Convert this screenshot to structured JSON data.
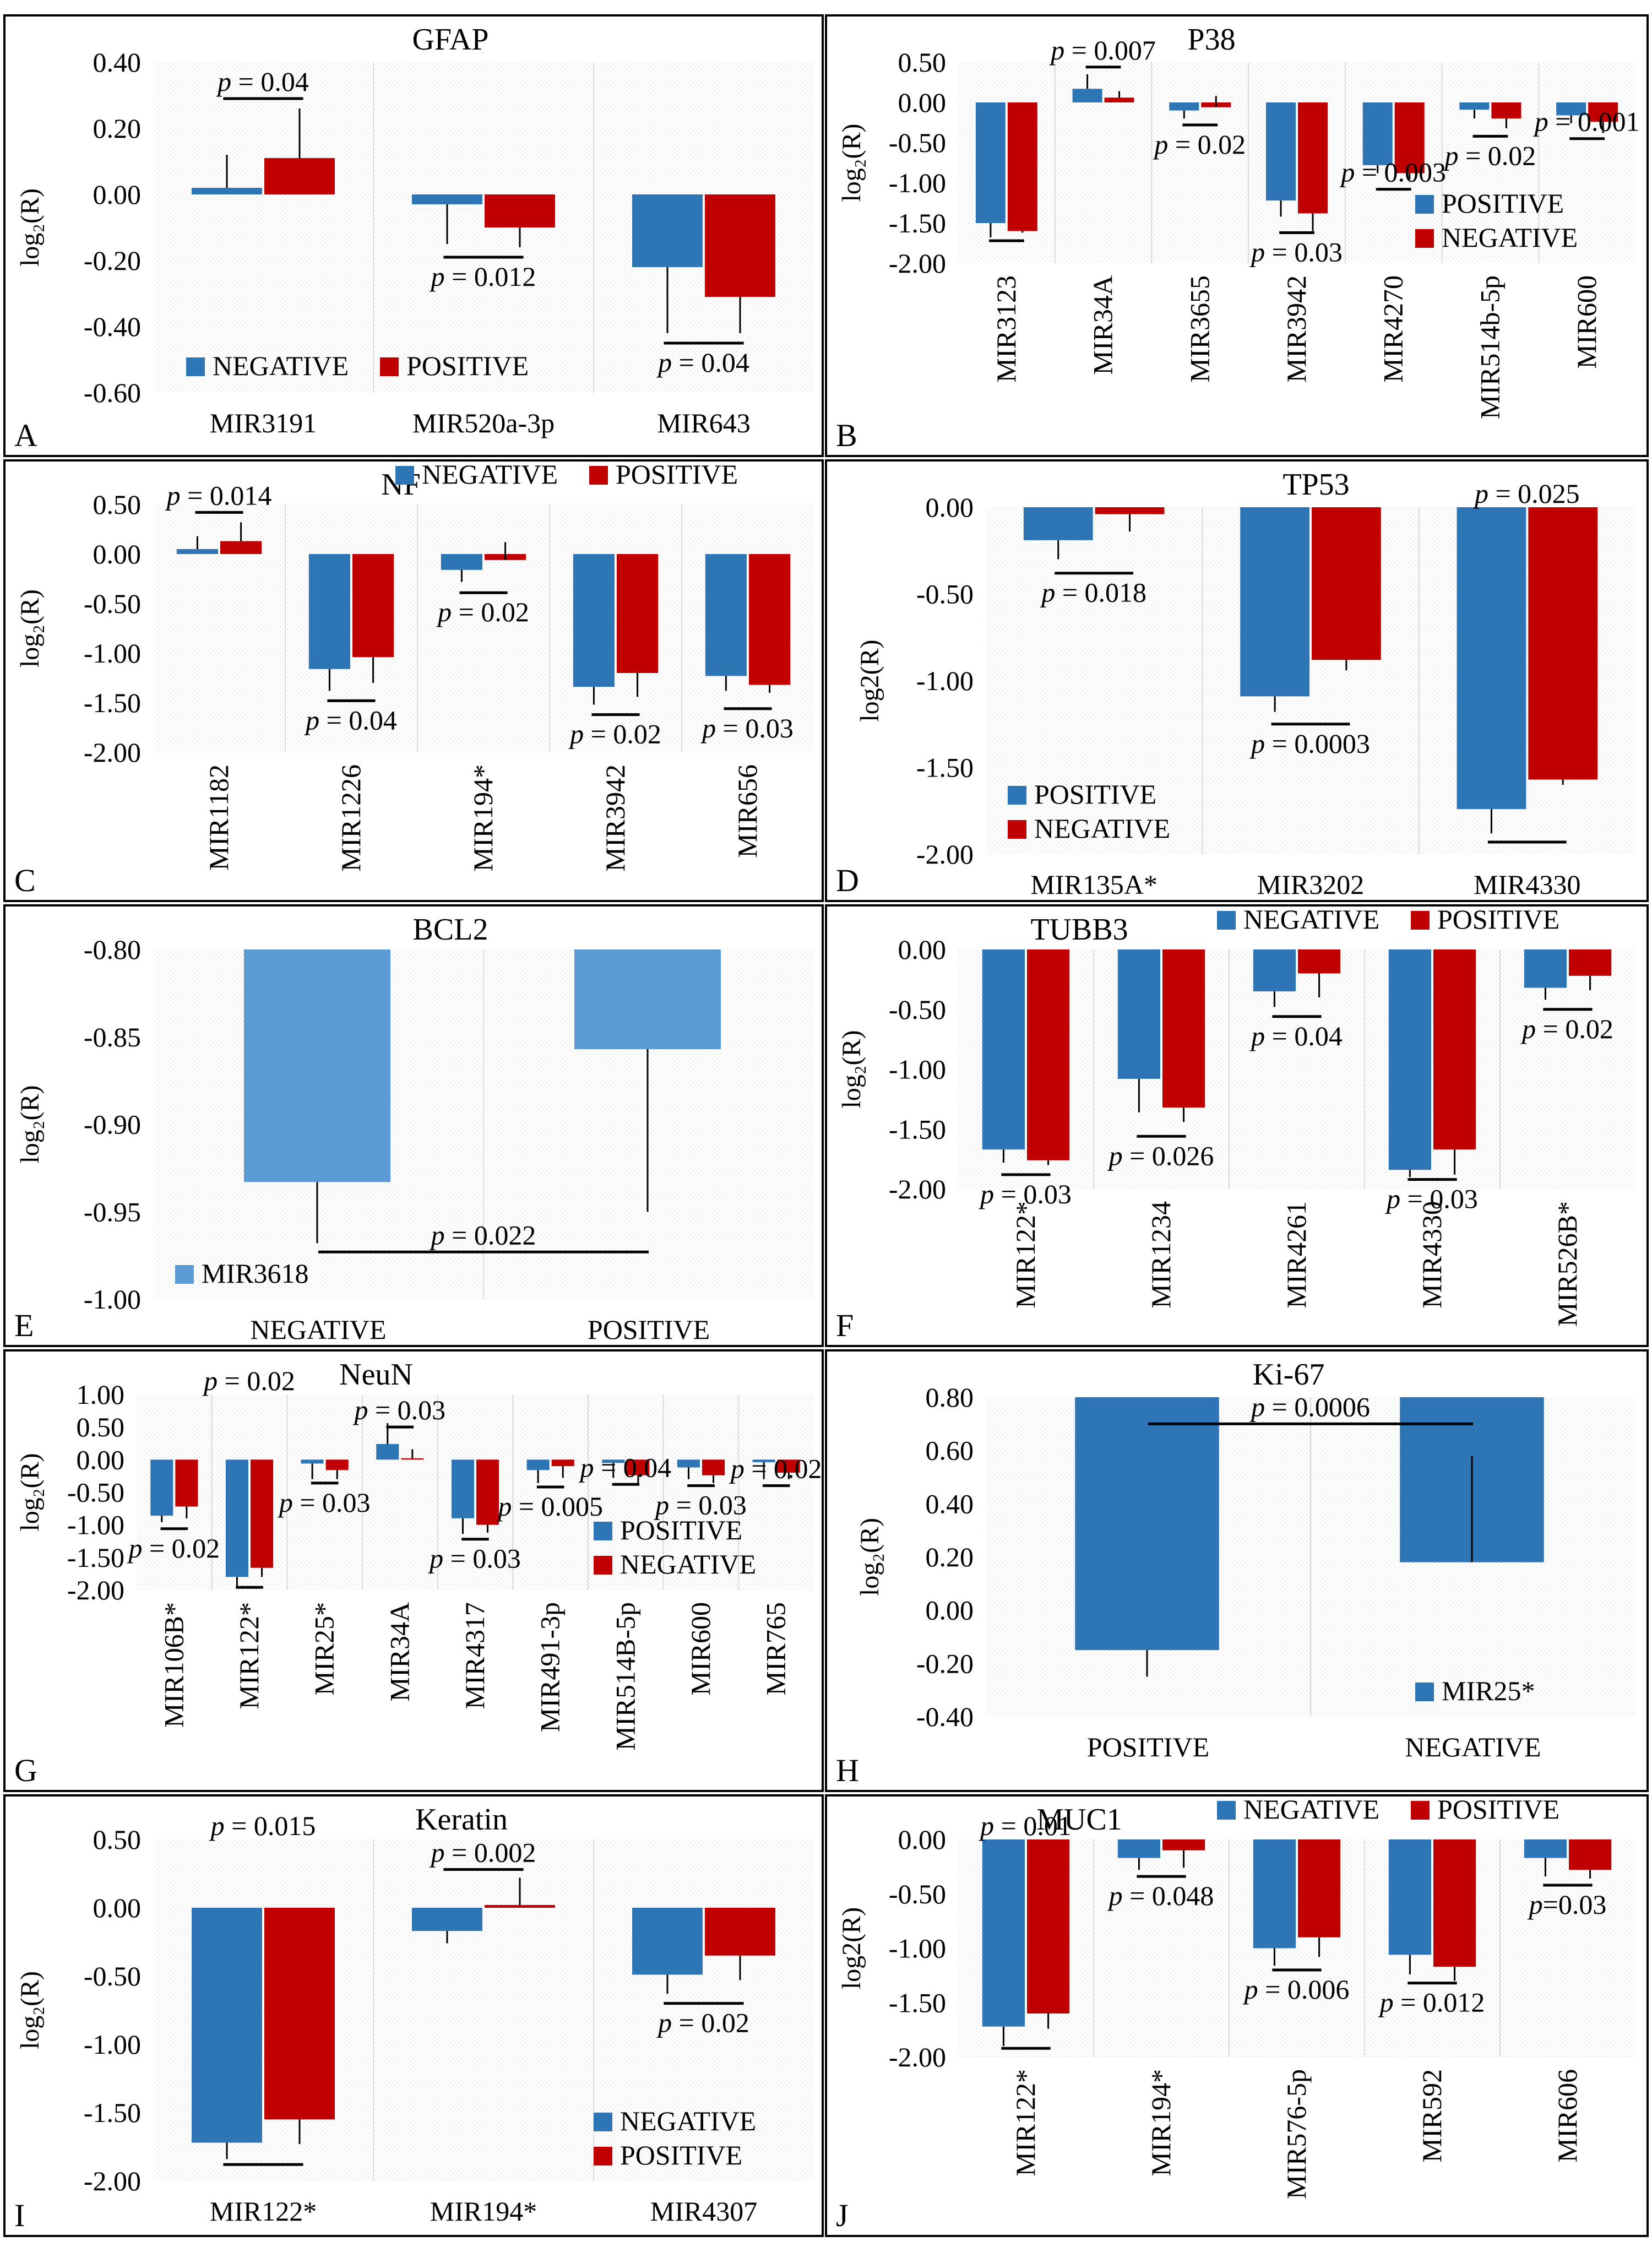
{
  "colors": {
    "blue": "#2E75B6",
    "red": "#C00000",
    "lightblue": "#5B9BD5",
    "grid": "#E7E6E6",
    "frame": "#000000"
  },
  "chart_data": [
    {
      "panel": "A",
      "type": "bar",
      "title": "GFAP",
      "ylabel": "log₂(R)",
      "ylim": [
        -0.6,
        0.4
      ],
      "yticks": [
        0.4,
        0.2,
        0,
        -0.2,
        -0.4,
        -0.6
      ],
      "tick_decimals": 2,
      "rotated": false,
      "categories": [
        "MIR3191",
        "MIR520a-3p",
        "MIR643"
      ],
      "series": [
        {
          "name": "NEGATIVE",
          "color": "blue",
          "values": [
            0.02,
            -0.03,
            -0.22
          ]
        },
        {
          "name": "POSITIVE",
          "color": "red",
          "values": [
            0.11,
            -0.1,
            -0.31
          ]
        }
      ],
      "errors": [
        [
          0.12,
          -0.15,
          -0.42
        ],
        [
          0.26,
          -0.16,
          -0.42
        ]
      ],
      "pvalues": [
        {
          "text": "p = 0.04",
          "cat": 0,
          "y": 0.29,
          "above": true
        },
        {
          "text": "p = 0.012",
          "cat": 1,
          "y": -0.19,
          "above": false
        },
        {
          "text": "p = 0.04",
          "cat": 2,
          "y": -0.45,
          "above": false
        }
      ],
      "legend": {
        "pos": "bottom-left",
        "layout": "row",
        "order": [
          "NEGATIVE",
          "POSITIVE"
        ]
      }
    },
    {
      "panel": "B",
      "type": "bar",
      "title": "P38",
      "ylabel": "log₂(R)",
      "ylim": [
        -2,
        0.5
      ],
      "yticks": [
        0.5,
        0,
        -0.5,
        -1,
        -1.5,
        -2
      ],
      "tick_decimals": 2,
      "rotated": true,
      "categories": [
        "MIR3123",
        "MIR34A",
        "MIR3655",
        "MIR3942",
        "MIR4270",
        "MIR514b-5p",
        "MIR600"
      ],
      "series": [
        {
          "name": "POSITIVE",
          "color": "blue",
          "values": [
            -1.5,
            0.17,
            -0.1,
            -1.22,
            -0.78,
            -0.09,
            -0.16
          ]
        },
        {
          "name": "NEGATIVE",
          "color": "red",
          "values": [
            -1.6,
            0.06,
            -0.06,
            -1.38,
            -0.88,
            -0.2,
            -0.24
          ]
        }
      ],
      "errors": [
        [
          -1.68,
          0.35,
          -0.2,
          -1.42,
          -0.88,
          -0.2,
          -0.26
        ],
        [
          -1.62,
          0.14,
          0.08,
          -1.6,
          -0.96,
          -0.32,
          -0.38
        ]
      ],
      "pvalues": [
        {
          "text": "",
          "cat": 0,
          "y": -1.72,
          "above": false
        },
        {
          "text": "p = 0.007",
          "cat": 1,
          "y": 0.44,
          "above": true
        },
        {
          "text": "p = 0.02",
          "cat": 2,
          "y": -0.28,
          "above": false
        },
        {
          "text": "p = 0.03",
          "cat": 3,
          "y": -1.62,
          "above": false
        },
        {
          "text": "p = 0.003",
          "cat": 4,
          "y": -1.08,
          "above": false,
          "labelAbove": true
        },
        {
          "text": "p = 0.02",
          "cat": 5,
          "y": -0.42,
          "above": false
        },
        {
          "text": "p = 0.001",
          "cat": 6,
          "y": -0.45,
          "above": false,
          "labelAbove": true
        }
      ],
      "legend": {
        "pos": "bottom-right",
        "layout": "column",
        "order": [
          "POSITIVE",
          "NEGATIVE"
        ]
      }
    },
    {
      "panel": "C",
      "type": "bar",
      "title": "NF",
      "ylabel": "log₂(R)",
      "ylim": [
        -2,
        0.5
      ],
      "yticks": [
        0.5,
        0,
        -0.5,
        -1,
        -1.5,
        -2
      ],
      "tick_decimals": 2,
      "rotated": true,
      "categories": [
        "MIR1182",
        "MIR1226",
        "MIR194*",
        "MIR3942",
        "MIR656"
      ],
      "series": [
        {
          "name": "NEGATIVE",
          "color": "blue",
          "values": [
            0.05,
            -1.16,
            -0.16,
            -1.34,
            -1.23
          ]
        },
        {
          "name": "POSITIVE",
          "color": "red",
          "values": [
            0.13,
            -1.04,
            -0.06,
            -1.2,
            -1.32
          ]
        }
      ],
      "errors": [
        [
          0.18,
          -1.38,
          -0.28,
          -1.52,
          -1.38
        ],
        [
          0.32,
          -1.3,
          0.12,
          -1.44,
          -1.4
        ]
      ],
      "pvalues": [
        {
          "text": "p = 0.014",
          "cat": 0,
          "y": 0.42,
          "above": true
        },
        {
          "text": "p = 0.04",
          "cat": 1,
          "y": -1.48,
          "above": false
        },
        {
          "text": "p = 0.02",
          "cat": 2,
          "y": -0.39,
          "above": false
        },
        {
          "text": "p = 0.02",
          "cat": 3,
          "y": -1.62,
          "above": false
        },
        {
          "text": "p = 0.03",
          "cat": 4,
          "y": -1.56,
          "above": false
        }
      ],
      "legend": {
        "pos": "top-right",
        "layout": "row",
        "order": [
          "NEGATIVE",
          "POSITIVE"
        ]
      }
    },
    {
      "panel": "D",
      "type": "bar",
      "title": "TP53",
      "ylabel": "log2(R)",
      "ylim": [
        -2,
        0
      ],
      "yticks": [
        0,
        -0.5,
        -1,
        -1.5,
        -2
      ],
      "tick_decimals": 2,
      "rotated": false,
      "categories": [
        "MIR135A*",
        "MIR3202",
        "MIR4330"
      ],
      "series": [
        {
          "name": "POSITIVE",
          "color": "blue",
          "values": [
            -0.19,
            -1.09,
            -1.74
          ]
        },
        {
          "name": "NEGATIVE",
          "color": "red",
          "values": [
            -0.04,
            -0.88,
            -1.57
          ]
        }
      ],
      "errors": [
        [
          -0.3,
          -1.18,
          -1.88
        ],
        [
          -0.14,
          -0.94,
          -1.6
        ]
      ],
      "pvalues": [
        {
          "text": "p = 0.018",
          "cat": 0,
          "y": -0.38,
          "above": false
        },
        {
          "text": "p = 0.0003",
          "cat": 1,
          "y": -1.25,
          "above": false
        },
        {
          "text": "p = 0.025",
          "cat": 2,
          "y": -1.93,
          "above": false,
          "labelTop": true
        }
      ],
      "legend": {
        "pos": "bottom-left",
        "layout": "column",
        "order": [
          "POSITIVE",
          "NEGATIVE"
        ]
      }
    },
    {
      "panel": "E",
      "type": "bar",
      "title": "BCL2",
      "ylabel": "log₂(R)",
      "ylim": [
        -1,
        -0.8
      ],
      "yticks": [
        -0.8,
        -0.85,
        -0.9,
        -0.95,
        -1
      ],
      "tick_decimals": 2,
      "rotated": false,
      "single": true,
      "categories": [
        "NEGATIVE",
        "POSITIVE"
      ],
      "series": [
        {
          "name": "MIR3618",
          "color": "lightblue",
          "values": [
            -0.933,
            -0.857
          ]
        }
      ],
      "errors": [
        [
          -0.968,
          -0.95
        ]
      ],
      "pvalues": [
        {
          "text": "p = 0.022",
          "cat": -1,
          "y": -0.973,
          "above": true
        }
      ],
      "legend": {
        "pos": "bottom-left",
        "layout": "column",
        "order": [
          "MIR3618"
        ]
      }
    },
    {
      "panel": "F",
      "type": "bar",
      "title": "TUBB3",
      "ylabel": "log₂(R)",
      "ylim": [
        -2,
        0
      ],
      "yticks": [
        0,
        -0.5,
        -1,
        -1.5,
        -2
      ],
      "tick_decimals": 2,
      "rotated": true,
      "categories": [
        "MIR122*",
        "MIR1234",
        "MIR4261",
        "MIR4330",
        "MIR526B*"
      ],
      "series": [
        {
          "name": "NEGATIVE",
          "color": "blue",
          "values": [
            -1.67,
            -1.08,
            -0.35,
            -1.84,
            -0.32
          ]
        },
        {
          "name": "POSITIVE",
          "color": "red",
          "values": [
            -1.76,
            -1.32,
            -0.2,
            -1.67,
            -0.22
          ]
        }
      ],
      "errors": [
        [
          -1.78,
          -1.36,
          -0.48,
          -1.9,
          -0.42
        ],
        [
          -1.8,
          -1.44,
          -0.4,
          -1.88,
          -0.34
        ]
      ],
      "pvalues": [
        {
          "text": "p = 0.03",
          "cat": 0,
          "y": -1.88,
          "above": false
        },
        {
          "text": "p = 0.026",
          "cat": 1,
          "y": -1.56,
          "above": false
        },
        {
          "text": "p = 0.04",
          "cat": 2,
          "y": -0.56,
          "above": false
        },
        {
          "text": "p = 0.03",
          "cat": 3,
          "y": -1.92,
          "above": false
        },
        {
          "text": "p = 0.02",
          "cat": 4,
          "y": -0.5,
          "above": false
        }
      ],
      "legend": {
        "pos": "top-right",
        "layout": "row",
        "order": [
          "NEGATIVE",
          "POSITIVE"
        ]
      }
    },
    {
      "panel": "G",
      "type": "bar",
      "title": "NeuN",
      "ylabel": "log₂(R)",
      "ylim": [
        -2,
        1
      ],
      "yticks": [
        1,
        0.5,
        0,
        -0.5,
        -1,
        -1.5,
        -2
      ],
      "tick_decimals": 2,
      "rotated": true,
      "categories": [
        "MIR106B*",
        "MIR122*",
        "MIR25*",
        "MIR34A",
        "MIR4317",
        "MIR491-3p",
        "MIR514B-5p",
        "MIR600",
        "MIR765"
      ],
      "series": [
        {
          "name": "POSITIVE",
          "color": "blue",
          "values": [
            -0.86,
            -1.8,
            -0.06,
            0.24,
            -0.9,
            -0.16,
            -0.05,
            -0.12,
            -0.04
          ]
        },
        {
          "name": "NEGATIVE",
          "color": "red",
          "values": [
            -0.72,
            -1.66,
            -0.16,
            0.02,
            -1.0,
            -0.1,
            -0.24,
            -0.24,
            -0.2
          ]
        }
      ],
      "errors": [
        [
          -0.96,
          -1.94,
          -0.3,
          0.56,
          -1.14,
          -0.36,
          -0.28,
          -0.3,
          -0.3
        ],
        [
          -0.9,
          -1.8,
          -0.3,
          0.16,
          -1.12,
          -0.28,
          -0.36,
          -0.36,
          -0.3
        ]
      ],
      "pvalues": [
        {
          "text": "p = 0.02",
          "cat": 0,
          "y": -1.06,
          "above": false,
          "labelBelow": true
        },
        {
          "text": "p = 0.02",
          "cat": 1,
          "y": -1.96,
          "above": false,
          "labelTop": true
        },
        {
          "text": "p = 0.03",
          "cat": 2,
          "y": -0.36,
          "above": false
        },
        {
          "text": "p = 0.03",
          "cat": 3,
          "y": 0.5,
          "above": true
        },
        {
          "text": "p = 0.03",
          "cat": 4,
          "y": -1.22,
          "above": false
        },
        {
          "text": "p = 0.005",
          "cat": 5,
          "y": -0.42,
          "above": false
        },
        {
          "text": "p = 0.04",
          "cat": 6,
          "y": -0.38,
          "above": false,
          "labelAbove": true
        },
        {
          "text": "p = 0.03",
          "cat": 7,
          "y": -0.4,
          "above": false
        },
        {
          "text": "p = 0.02",
          "cat": 8,
          "y": -0.4,
          "above": false,
          "labelAbove": true
        }
      ],
      "legend": {
        "pos": "bottom-right",
        "layout": "column",
        "order": [
          "POSITIVE",
          "NEGATIVE"
        ]
      }
    },
    {
      "panel": "H",
      "type": "bar",
      "title": "Ki-67",
      "ylabel": "log₂(R)",
      "ylim": [
        -0.4,
        0.8
      ],
      "yticks": [
        0.8,
        0.6,
        0.4,
        0.2,
        0,
        -0.2,
        -0.4
      ],
      "tick_decimals": 2,
      "rotated": false,
      "single": true,
      "categories": [
        "POSITIVE",
        "NEGATIVE"
      ],
      "series": [
        {
          "name": "MIR25*",
          "color": "blue",
          "values": [
            -0.15,
            0.18
          ]
        }
      ],
      "errors": [
        [
          -0.25,
          0.58
        ]
      ],
      "pvalues": [
        {
          "text": "p = 0.0006",
          "cat": -1,
          "y": 0.7,
          "above": true
        }
      ],
      "legend": {
        "pos": "bottom-right",
        "layout": "column",
        "order": [
          "MIR25*"
        ]
      }
    },
    {
      "panel": "I",
      "type": "bar",
      "title": "Keratin",
      "ylabel": "log₂(R)",
      "ylim": [
        -2,
        0.5
      ],
      "yticks": [
        0.5,
        0,
        -0.5,
        -1,
        -1.5,
        -2
      ],
      "tick_decimals": 2,
      "rotated": false,
      "categories": [
        "MIR122*",
        "MIR194*",
        "MIR4307"
      ],
      "series": [
        {
          "name": "NEGATIVE",
          "color": "blue",
          "values": [
            -1.72,
            -0.17,
            -0.49
          ]
        },
        {
          "name": "POSITIVE",
          "color": "red",
          "values": [
            -1.55,
            0.02,
            -0.35
          ]
        }
      ],
      "errors": [
        [
          -1.84,
          -0.26,
          -0.63
        ],
        [
          -1.73,
          0.22,
          -0.53
        ]
      ],
      "pvalues": [
        {
          "text": "p = 0.015",
          "cat": 0,
          "y": -1.88,
          "above": false,
          "labelTop": true
        },
        {
          "text": "p = 0.002",
          "cat": 1,
          "y": 0.28,
          "above": true
        },
        {
          "text": "p = 0.02",
          "cat": 2,
          "y": -0.7,
          "above": false
        }
      ],
      "legend": {
        "pos": "bottom-right",
        "layout": "column",
        "order": [
          "NEGATIVE",
          "POSITIVE"
        ]
      }
    },
    {
      "panel": "J",
      "type": "bar",
      "title": "MUC1",
      "ylabel": "log2(R)",
      "ylim": [
        -2,
        0
      ],
      "yticks": [
        0,
        -0.5,
        -1,
        -1.5,
        -2
      ],
      "tick_decimals": 2,
      "rotated": true,
      "categories": [
        "MIR122*",
        "MIR194*",
        "MIR576-5p",
        "MIR592",
        "MIR606"
      ],
      "series": [
        {
          "name": "NEGATIVE",
          "color": "blue",
          "values": [
            -1.72,
            -0.17,
            -1.0,
            -1.06,
            -0.17
          ]
        },
        {
          "name": "POSITIVE",
          "color": "red",
          "values": [
            -1.6,
            -0.1,
            -0.9,
            -1.17,
            -0.28
          ]
        }
      ],
      "errors": [
        [
          -1.9,
          -0.28,
          -1.16,
          -1.24,
          -0.34
        ],
        [
          -1.74,
          -0.26,
          -1.08,
          -1.3,
          -0.36
        ]
      ],
      "pvalues": [
        {
          "text": "p = 0.01",
          "cat": 0,
          "y": -1.92,
          "above": false,
          "labelTop": true
        },
        {
          "text": "p = 0.048",
          "cat": 1,
          "y": -0.34,
          "above": false
        },
        {
          "text": "p = 0.006",
          "cat": 2,
          "y": -1.2,
          "above": false
        },
        {
          "text": "p = 0.012",
          "cat": 3,
          "y": -1.32,
          "above": false
        },
        {
          "text": "p=0.03",
          "cat": 4,
          "y": -0.42,
          "above": false
        }
      ],
      "legend": {
        "pos": "top-right",
        "layout": "row",
        "order": [
          "NEGATIVE",
          "POSITIVE"
        ]
      }
    }
  ]
}
